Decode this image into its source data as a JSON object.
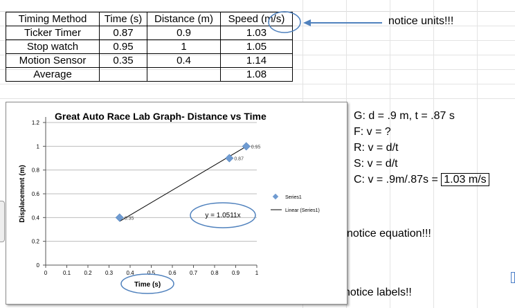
{
  "table": {
    "headers": [
      "Timing Method",
      "Time (s)",
      "Distance (m)",
      "Speed (m/s)"
    ],
    "rows": [
      [
        "Ticker Timer",
        "0.87",
        "0.9",
        "1.03"
      ],
      [
        "Stop watch",
        "0.95",
        "1",
        "1.05"
      ],
      [
        "Motion Sensor",
        "0.35",
        "0.4",
        "1.14"
      ],
      [
        "Average",
        "",
        "",
        "1.08"
      ]
    ]
  },
  "annotations": {
    "units": "notice units!!!",
    "equation": "notice equation!!!",
    "labels": "notice labels!!"
  },
  "solution": {
    "g": "G: d = .9 m, t = .87 s",
    "f": "F: v = ?",
    "r": "R: v = d/t",
    "s": "S: v = d/t",
    "c_prefix": "C: v = .9m/.87s = ",
    "c_answer": "1.03 m/s"
  },
  "colors": {
    "marker": "#6f9bd1",
    "annotation": "#4f81bd"
  },
  "chart_data": {
    "type": "scatter",
    "title": "Great Auto Race Lab Graph- Distance vs Time",
    "xlabel": "Time (s)",
    "ylabel": "Displacement (m)",
    "xlim": [
      0,
      1
    ],
    "ylim": [
      0,
      1.2
    ],
    "xticks": [
      "0",
      "0.1",
      "0.2",
      "0.3",
      "0.4",
      "0.5",
      "0.6",
      "0.7",
      "0.8",
      "0.9",
      "1"
    ],
    "yticks": [
      "0",
      "0.2",
      "0.4",
      "0.6",
      "0.8",
      "1",
      "1.2"
    ],
    "series": [
      {
        "name": "Series1",
        "points": [
          {
            "x": 0.35,
            "y": 0.4,
            "label": "0.35"
          },
          {
            "x": 0.87,
            "y": 0.9,
            "label": "0.87"
          },
          {
            "x": 0.95,
            "y": 1.0,
            "label": "0.95"
          }
        ]
      }
    ],
    "trendline": {
      "name": "Linear (Series1)",
      "equation": "y = 1.0511x",
      "slope": 1.0511,
      "x_start": 0.35,
      "x_end": 0.95
    },
    "legend": [
      "Series1",
      "Linear (Series1)"
    ],
    "legend_position": "right",
    "grid": true
  }
}
